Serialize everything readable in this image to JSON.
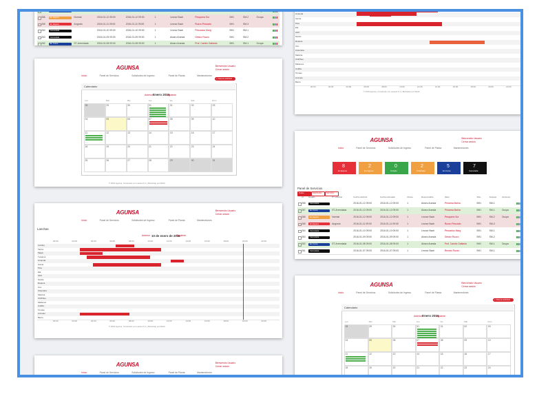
{
  "brand": "AGUNSA",
  "user": "Bienvenido Usuario",
  "logout": "Cerrar sesión",
  "nav": [
    "Inicio",
    "Panel de Servicios",
    "Solicitudes de Ingreso",
    "Panel de Planta",
    "Mantenedores"
  ],
  "footer": "© 2016 Agunsa. Construido con Laravel 5.1 y Bootstrap por Mirafi.",
  "calendar": {
    "title": "Calendario",
    "new": "+ Nueva solicitud",
    "prev": "Anterior",
    "month": "Enero 2016",
    "next": "Siguiente",
    "weekdays": [
      "Lun",
      "Mar",
      "Mié",
      "Jue",
      "Vie",
      "Sáb",
      "Dom"
    ],
    "days": [
      "28",
      "29",
      "30",
      "31",
      "01",
      "02",
      "03",
      "04",
      "05",
      "06",
      "07",
      "08",
      "09",
      "10",
      "11",
      "12",
      "13",
      "14",
      "15",
      "16",
      "17",
      "18",
      "19",
      "20",
      "21",
      "22",
      "23",
      "24",
      "25",
      "26",
      "27",
      "28",
      "29",
      "30",
      "31"
    ]
  },
  "gantt": {
    "title": "Lanchas",
    "prev": "Anterior",
    "date": "10 de enero de 2016",
    "next": "Siguiente",
    "hours": [
      "00:00",
      "02:00",
      "04:00",
      "06:00",
      "08:00",
      "10:00",
      "12:00",
      "14:00",
      "16:00",
      "18:00",
      "20:00",
      "22:00"
    ],
    "rows": [
      "Loreley",
      "Tacna",
      "Maga",
      "Tucanes",
      "Amanda",
      "Gama",
      "Pica",
      "Ela",
      "Abril",
      "Narcis",
      "Ruanca",
      "Uco",
      "Araucaria",
      "Malvina",
      "Chiñihue",
      "Maitenes",
      "Coliflor",
      "Tomate",
      "Anzuelo",
      "Barco"
    ]
  },
  "panel": {
    "title": "Panel de Servicios",
    "filters": [
      "Todos",
      "Solicitudes",
      "Servicios"
    ],
    "stats": [
      {
        "value": "8",
        "label": "En Espera",
        "color": "#e5303a"
      },
      {
        "value": "2",
        "label": "En Ingreso",
        "color": "#f0a040"
      },
      {
        "value": "0",
        "label": "Iniciada",
        "color": "#3aa64a"
      },
      {
        "value": "2",
        "label": "Finalizada",
        "color": "#f0a040"
      },
      {
        "value": "5",
        "label": "En Curso",
        "color": "#1a3f9a"
      },
      {
        "value": "7",
        "label": "Cancelada",
        "color": "#111111"
      }
    ],
    "columns": [
      "Id",
      "Estado",
      "Nº solicitud",
      "Fecha solicitud",
      "Fecha estimada",
      "Atraso",
      "Responsable",
      "Nave",
      "Sitio",
      "Atraque",
      "Acciones"
    ],
    "rows": [
      {
        "status": "Cancelada",
        "color": "#111111",
        "tint": "#ffffff",
        "cells": [
          "268",
          "",
          "2016-01-12 09:00",
          "2016-01-12 09:00",
          "1",
          "Alvaro Aranda",
          "Princesa Bahía",
          "BH1",
          "SM-1",
          ""
        ]
      },
      {
        "status": "En Curso",
        "color": "#1a3f9a",
        "tint": "#dff0d8",
        "cells": [
          "267",
          "ST-Arrendada",
          "2016-01-12 09:00",
          "2016-01-12 09:00",
          "1",
          "Alvaro Aranda",
          "Princesa Bahía",
          "BH1",
          "SM-1",
          "Ocupa"
        ]
      },
      {
        "status": "En Espera",
        "color": "#f0a040",
        "tint": "#f2dede",
        "cells": [
          "266",
          "Normal",
          "2016-01-12 09:00",
          "2016-01-12 09:00",
          "1",
          "Leonor Bach",
          "Pesquera Sur",
          "BH1",
          "SM-2",
          "Ocupa"
        ]
      },
      {
        "status": "En Espera",
        "color": "#e5303a",
        "tint": "#f2dede",
        "cells": [
          "265",
          "Angosto",
          "2016-01-11 09:00",
          "2016-01-11 09:00",
          "1",
          "Leonor Bach",
          "Ruzzo Pescado",
          "BH1",
          "SM-3",
          ""
        ]
      },
      {
        "status": "Cancelada",
        "color": "#111111",
        "tint": "#ffffff",
        "cells": [
          "264",
          "",
          "2016-01-10 09:00",
          "2016-01-10 09:00",
          "1",
          "Leonor Bach",
          "Pescados Marg",
          "BH1",
          "SM-1",
          ""
        ]
      },
      {
        "status": "Cancelada",
        "color": "#111111",
        "tint": "#ffffff",
        "cells": [
          "263",
          "",
          "2016-01-09 09:00",
          "2016-01-09 09:00",
          "1",
          "Alvaro Aranda",
          "Gestor Ruzzo",
          "BH1",
          "SM-2",
          ""
        ]
      },
      {
        "status": "En Curso",
        "color": "#1a3f9a",
        "tint": "#dff0d8",
        "cells": [
          "262",
          "ST-Arrendada",
          "2016-01-08 09:00",
          "2016-01-08 09:00",
          "1",
          "Alvaro Aranda",
          "Prof. Camilo Gallardo",
          "BH1",
          "SM-1",
          "Ocupa"
        ]
      },
      {
        "status": "Cancelada",
        "color": "#111111",
        "tint": "#ffffff",
        "cells": [
          "261",
          "",
          "2016-01-07 09:00",
          "2016-01-07 09:00",
          "1",
          "Leonor Bach",
          "Renato Ruzzo",
          "BH1",
          "SM-1",
          ""
        ]
      }
    ]
  }
}
